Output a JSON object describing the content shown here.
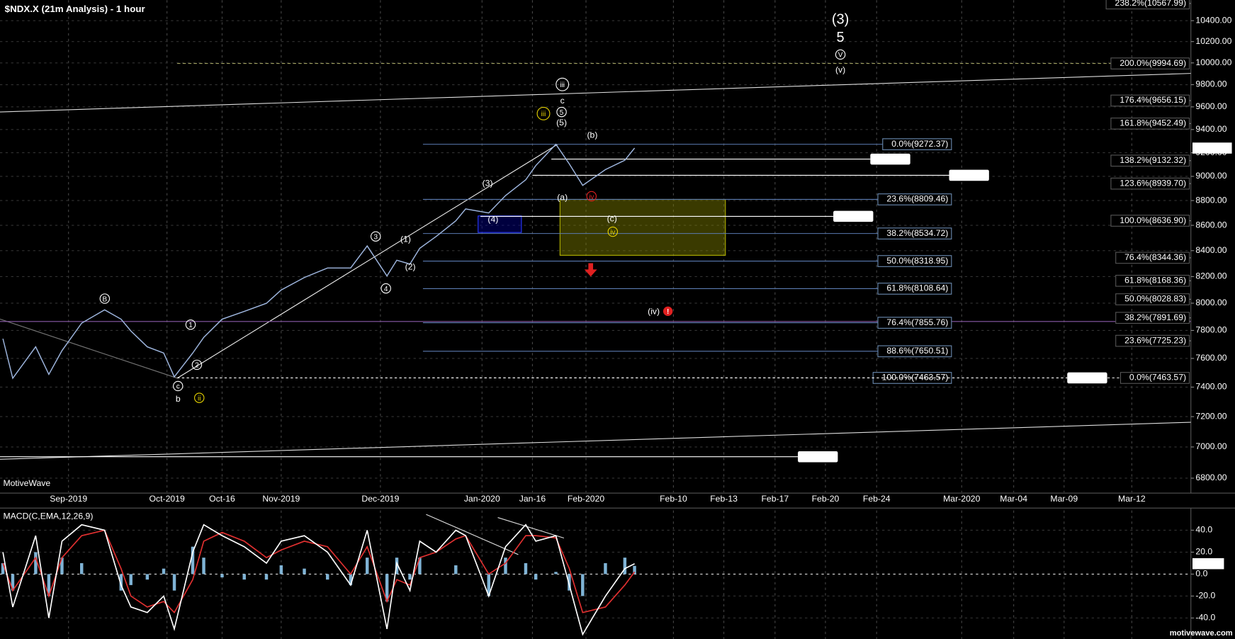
{
  "watermark": "MotiveWave",
  "footer": "motivewave.com",
  "chart_data": [
    {
      "type": "line",
      "title": "$NDX.X (21m Analysis) - 1 hour",
      "log_scale": true,
      "grid": true,
      "color": "#9fb7e0",
      "x": [
        "2019-08-12",
        "2019-08-15",
        "2019-08-22",
        "2019-08-26",
        "2019-08-30",
        "2019-09-05",
        "2019-09-12",
        "2019-09-17",
        "2019-09-20",
        "2019-09-25",
        "2019-09-30",
        "2019-10-03",
        "2019-10-08",
        "2019-10-11",
        "2019-10-16",
        "2019-10-22",
        "2019-10-28",
        "2019-11-01",
        "2019-11-08",
        "2019-11-15",
        "2019-11-22",
        "2019-11-27",
        "2019-12-03",
        "2019-12-06",
        "2019-12-10",
        "2019-12-13",
        "2019-12-18",
        "2019-12-24",
        "2019-12-27",
        "2020-01-03",
        "2020-01-08",
        "2020-01-14",
        "2020-01-17",
        "2020-01-23",
        "2020-01-27",
        "2020-01-31",
        "2020-02-03",
        "2020-02-05",
        "2020-02-06"
      ],
      "values": [
        7740,
        7461,
        7682,
        7488,
        7655,
        7853,
        7951,
        7882,
        7796,
        7682,
        7638,
        7471,
        7638,
        7750,
        7882,
        7939,
        7999,
        8099,
        8193,
        8266,
        8266,
        8437,
        8205,
        8326,
        8296,
        8418,
        8511,
        8636,
        8732,
        8699,
        8841,
        8971,
        9091,
        9272,
        9105,
        8925,
        9057,
        9136,
        9239.46
      ],
      "ylim": [
        6711,
        10600
      ],
      "yticks": [
        {
          "value": 6800,
          "label": "6800.00"
        },
        {
          "value": 7000,
          "label": "7000.00"
        },
        {
          "value": 7200,
          "label": "7200.00"
        },
        {
          "value": 7400,
          "label": "7400.00"
        },
        {
          "value": 7600,
          "label": "7600.00"
        },
        {
          "value": 7800,
          "label": "7800.00"
        },
        {
          "value": 8000,
          "label": "8000.00"
        },
        {
          "value": 8200,
          "label": "8200.00"
        },
        {
          "value": 8400,
          "label": "8400.00"
        },
        {
          "value": 8600,
          "label": "8600.00"
        },
        {
          "value": 8800,
          "label": "8800.00"
        },
        {
          "value": 9000,
          "label": "9000.00"
        },
        {
          "value": 9200,
          "label": "9200.00"
        },
        {
          "value": 9400,
          "label": "9400.00"
        },
        {
          "value": 9600,
          "label": "9600.00"
        },
        {
          "value": 9800,
          "label": "9800.00"
        },
        {
          "value": 10000,
          "label": "10000.00"
        },
        {
          "value": 10200,
          "label": "10200.00"
        },
        {
          "value": 10400,
          "label": "10400.00"
        }
      ],
      "xticks": [
        {
          "value": "2019-09",
          "label": "Sep-2019"
        },
        {
          "value": "2019-10",
          "label": "Oct-2019"
        },
        {
          "value": "2019-10-16",
          "label": "Oct-16"
        },
        {
          "value": "2019-11",
          "label": "Nov-2019"
        },
        {
          "value": "2019-12",
          "label": "Dec-2019"
        },
        {
          "value": "2020-01",
          "label": "Jan-2020"
        },
        {
          "value": "2020-01-16",
          "label": "Jan-16"
        },
        {
          "value": "2020-02",
          "label": "Feb-2020"
        },
        {
          "value": "2020-02-10",
          "label": "Feb-10"
        },
        {
          "value": "2020-02-13",
          "label": "Feb-13"
        },
        {
          "value": "2020-02-17",
          "label": "Feb-17"
        },
        {
          "value": "2020-02-20",
          "label": "Feb-20"
        },
        {
          "value": "2020-02-24",
          "label": "Feb-24"
        },
        {
          "value": "2020-03",
          "label": "Mar-2020"
        },
        {
          "value": "2020-03-04",
          "label": "Mar-04"
        },
        {
          "value": "2020-03-09",
          "label": "Mar-09"
        },
        {
          "value": "2020-03-12",
          "label": "Mar-12"
        }
      ],
      "fib_retracements": [
        {
          "value": 9272.37,
          "label": "0.0%(9272.37)"
        },
        {
          "value": 8809.46,
          "label": "23.6%(8809.46)"
        },
        {
          "value": 8534.72,
          "label": "38.2%(8534.72)"
        },
        {
          "value": 8318.95,
          "label": "50.0%(8318.95)"
        },
        {
          "value": 8108.64,
          "label": "61.8%(8108.64)"
        },
        {
          "value": 7855.76,
          "label": "76.4%(7855.76)"
        },
        {
          "value": 7650.51,
          "label": "88.6%(7650.51)"
        },
        {
          "value": 7463.57,
          "label": "100.0%(7463.57)"
        }
      ],
      "fib_extensions": [
        {
          "value": 10567.99,
          "label": "238.2%(10567.99)"
        },
        {
          "value": 9994.69,
          "label": "200.0%(9994.69)"
        },
        {
          "value": 9656.15,
          "label": "176.4%(9656.15)"
        },
        {
          "value": 9452.49,
          "label": "161.8%(9452.49)"
        },
        {
          "value": 9132.32,
          "label": "138.2%(9132.32)"
        },
        {
          "value": 8939.7,
          "label": "123.6%(8939.70)"
        },
        {
          "value": 8636.9,
          "label": "100.0%(8636.90)"
        },
        {
          "value": 8344.36,
          "label": "76.4%(8344.36)"
        },
        {
          "value": 8168.36,
          "label": "61.8%(8168.36)"
        },
        {
          "value": 8028.83,
          "label": "50.0%(8028.83)"
        },
        {
          "value": 7891.69,
          "label": "38.2%(7891.69)"
        },
        {
          "value": 7725.23,
          "label": "23.6%(7725.23)"
        },
        {
          "value": 7463.57,
          "label": "0.0%(7463.57)"
        }
      ],
      "price_lines": [
        9145.23,
        9008.95,
        8671.92,
        7463.57,
        6936.68
      ],
      "wave_labels": [
        {
          "text": "(3)",
          "color": "#ffffff",
          "circled": false
        },
        {
          "text": "5",
          "color": "#ffffff",
          "circled": false
        },
        {
          "text": "V",
          "color": "#ffffff",
          "circled": true
        },
        {
          "text": "(v)",
          "color": "#ffffff",
          "circled": false
        },
        {
          "text": "iii",
          "color": "#ffffff",
          "circled": true
        },
        {
          "text": "c",
          "color": "#ffffff",
          "circled": false
        },
        {
          "text": "5",
          "color": "#ffffff",
          "circled": true
        },
        {
          "text": "(5)",
          "color": "#ffffff",
          "circled": false
        },
        {
          "text": "iii",
          "color": "#e6d200",
          "circled": true
        },
        {
          "text": "(b)",
          "color": "#ffffff",
          "circled": false
        },
        {
          "text": "(a)",
          "color": "#ffffff",
          "circled": false
        },
        {
          "text": "iv",
          "color": "#e02020",
          "circled": true
        },
        {
          "text": "(c)",
          "color": "#ffffff",
          "circled": false
        },
        {
          "text": "iv",
          "color": "#e6d200",
          "circled": true
        },
        {
          "text": "(3)",
          "color": "#ffffff",
          "circled": false
        },
        {
          "text": "(4)",
          "color": "#ffffff",
          "circled": false
        },
        {
          "text": "3",
          "color": "#ffffff",
          "circled": true
        },
        {
          "text": "(1)",
          "color": "#ffffff",
          "circled": false
        },
        {
          "text": "(2)",
          "color": "#ffffff",
          "circled": false
        },
        {
          "text": "4",
          "color": "#ffffff",
          "circled": true
        },
        {
          "text": "B",
          "color": "#ffffff",
          "circled": true
        },
        {
          "text": "1",
          "color": "#ffffff",
          "circled": true
        },
        {
          "text": "2",
          "color": "#ffffff",
          "circled": true
        },
        {
          "text": "c",
          "color": "#ffffff",
          "circled": true
        },
        {
          "text": "b",
          "color": "#ffffff",
          "circled": false
        },
        {
          "text": "ii",
          "color": "#e6d200",
          "circled": true
        },
        {
          "text": "(iv)",
          "color": "#ffffff",
          "circled": false
        }
      ]
    },
    {
      "type": "line",
      "title": "MACD(C,EMA,12,26,9)",
      "x": [
        "2019-08-12",
        "2019-08-15",
        "2019-08-22",
        "2019-08-26",
        "2019-08-30",
        "2019-09-05",
        "2019-09-12",
        "2019-09-17",
        "2019-09-20",
        "2019-09-25",
        "2019-09-30",
        "2019-10-03",
        "2019-10-08",
        "2019-10-11",
        "2019-10-16",
        "2019-10-22",
        "2019-10-28",
        "2019-11-01",
        "2019-11-08",
        "2019-11-15",
        "2019-11-22",
        "2019-11-27",
        "2019-12-03",
        "2019-12-06",
        "2019-12-10",
        "2019-12-13",
        "2019-12-18",
        "2019-12-24",
        "2019-12-27",
        "2020-01-03",
        "2020-01-08",
        "2020-01-14",
        "2020-01-17",
        "2020-01-23",
        "2020-01-27",
        "2020-01-31",
        "2020-02-03",
        "2020-02-05",
        "2020-02-06"
      ],
      "series": [
        {
          "color": "#7fb3d5",
          "type": "bar",
          "values": [
            10,
            -15,
            20,
            -20,
            15,
            10,
            0,
            -15,
            -10,
            -5,
            5,
            -15,
            25,
            15,
            -3,
            -5,
            -5,
            8,
            5,
            -5,
            -10,
            15,
            -25,
            15,
            -5,
            15,
            0,
            8,
            0,
            -20,
            15,
            10,
            -5,
            2,
            -15,
            -20,
            10,
            15,
            7.5
          ]
        },
        {
          "color": "#e03030",
          "values": [
            10,
            -15,
            15,
            -20,
            15,
            35,
            40,
            5,
            -20,
            -30,
            -25,
            -35,
            -5,
            30,
            38,
            30,
            15,
            22,
            30,
            25,
            0,
            25,
            -25,
            -5,
            -10,
            15,
            20,
            32,
            35,
            0,
            10,
            35,
            35,
            33,
            5,
            -35,
            -30,
            -10,
            2
          ]
        },
        {
          "color": "#ffffff",
          "values": [
            20,
            -30,
            35,
            -40,
            30,
            45,
            40,
            -10,
            -30,
            -35,
            -20,
            -50,
            20,
            45,
            35,
            25,
            10,
            30,
            35,
            20,
            -10,
            40,
            -50,
            10,
            -15,
            30,
            20,
            40,
            35,
            -20,
            25,
            45,
            30,
            35,
            -10,
            -55,
            -20,
            5,
            9.508
          ]
        }
      ],
      "ylim": [
        -59,
        58
      ],
      "yticks": [
        {
          "value": 40,
          "label": "40.0"
        },
        {
          "value": 20,
          "label": "20.0"
        },
        {
          "value": 0,
          "label": "0.0"
        },
        {
          "value": -20,
          "label": "-20.0"
        },
        {
          "value": -40,
          "label": "-40.0"
        }
      ]
    }
  ]
}
